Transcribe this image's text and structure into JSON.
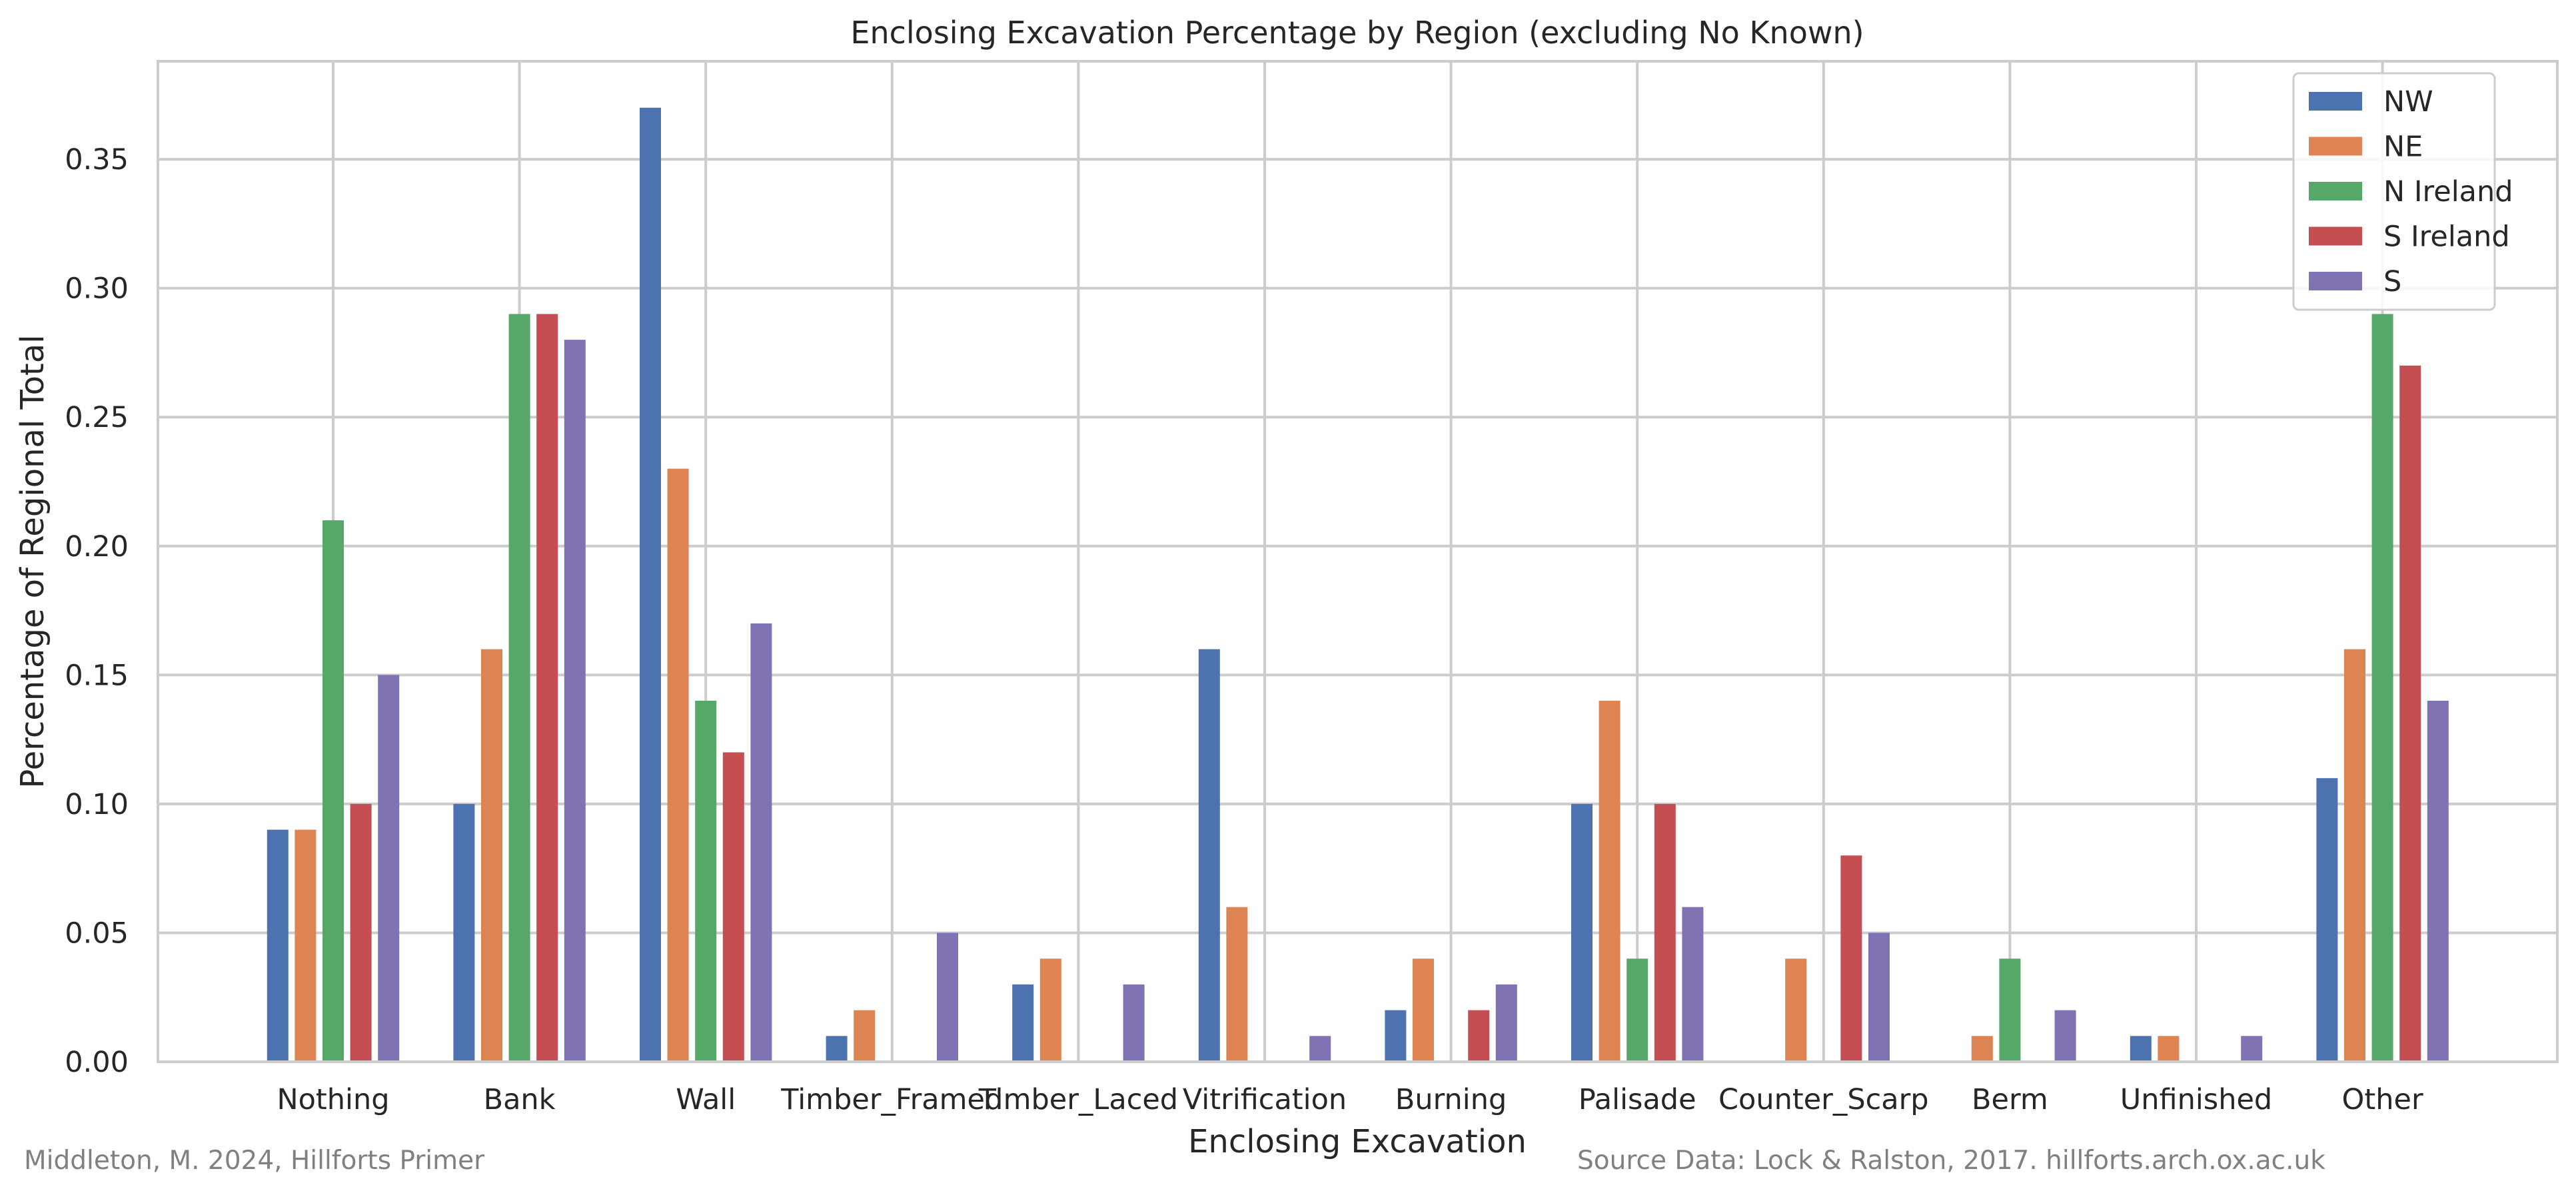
{
  "chart_data": {
    "type": "bar",
    "title": "Enclosing Excavation Percentage by Region (excluding No Known)",
    "xlabel": "Enclosing Excavation",
    "ylabel": "Percentage of Regional Total",
    "categories": [
      "Nothing",
      "Bank",
      "Wall",
      "Timber_Framed",
      "Timber_Laced",
      "Vitrification",
      "Burning",
      "Palisade",
      "Counter_Scarp",
      "Berm",
      "Unfinished",
      "Other"
    ],
    "series": [
      {
        "name": "NW",
        "color": "#4c72b0",
        "values": [
          0.09,
          0.1,
          0.37,
          0.01,
          0.03,
          0.16,
          0.02,
          0.1,
          0.0,
          0.0,
          0.01,
          0.11
        ]
      },
      {
        "name": "NE",
        "color": "#dd8452",
        "values": [
          0.09,
          0.16,
          0.23,
          0.02,
          0.04,
          0.06,
          0.04,
          0.14,
          0.04,
          0.01,
          0.01,
          0.16
        ]
      },
      {
        "name": "N Ireland",
        "color": "#55a868",
        "values": [
          0.21,
          0.29,
          0.14,
          0.0,
          0.0,
          0.0,
          0.0,
          0.04,
          0.0,
          0.04,
          0.0,
          0.29
        ]
      },
      {
        "name": "S Ireland",
        "color": "#c44e52",
        "values": [
          0.1,
          0.29,
          0.12,
          0.0,
          0.0,
          0.0,
          0.02,
          0.1,
          0.08,
          0.0,
          0.0,
          0.27
        ]
      },
      {
        "name": "S",
        "color": "#8172b3",
        "values": [
          0.15,
          0.28,
          0.17,
          0.05,
          0.03,
          0.01,
          0.03,
          0.06,
          0.05,
          0.02,
          0.01,
          0.14
        ]
      }
    ],
    "ylim": [
      0,
      0.388
    ],
    "yticks": [
      "0.00",
      "0.05",
      "0.10",
      "0.15",
      "0.20",
      "0.25",
      "0.30",
      "0.35"
    ],
    "grid": true,
    "legend_position": "top-right"
  },
  "credits": {
    "left": "Middleton, M. 2024, Hillforts Primer",
    "right": "Source Data: Lock & Ralston, 2017. hillforts.arch.ox.ac.uk"
  }
}
